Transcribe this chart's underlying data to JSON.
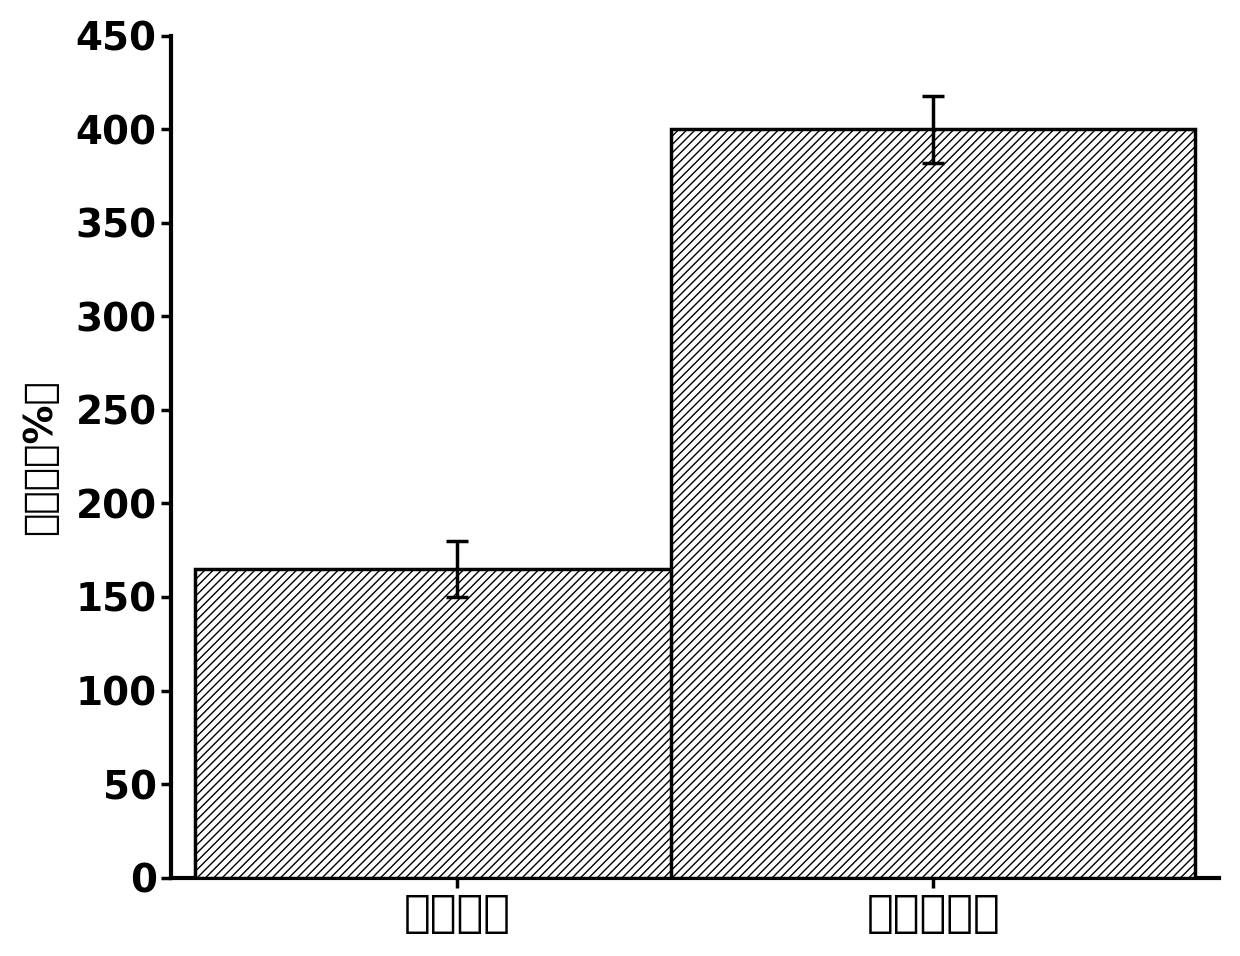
{
  "categories": [
    "生物胶水",
    "原始溶胀率"
  ],
  "values": [
    165,
    400
  ],
  "errors": [
    15,
    18
  ],
  "ylabel": "溶胀率（%）",
  "ylim": [
    0,
    450
  ],
  "yticks": [
    0,
    50,
    100,
    150,
    200,
    250,
    300,
    350,
    400,
    450
  ],
  "bar_color": "#ffffff",
  "bar_edgecolor": "#000000",
  "hatch": "////",
  "bar_width": 0.55,
  "background_color": "#ffffff",
  "tick_fontsize": 28,
  "label_fontsize": 32,
  "ylabel_fontsize": 28,
  "error_capsize": 8,
  "error_linewidth": 2.5
}
